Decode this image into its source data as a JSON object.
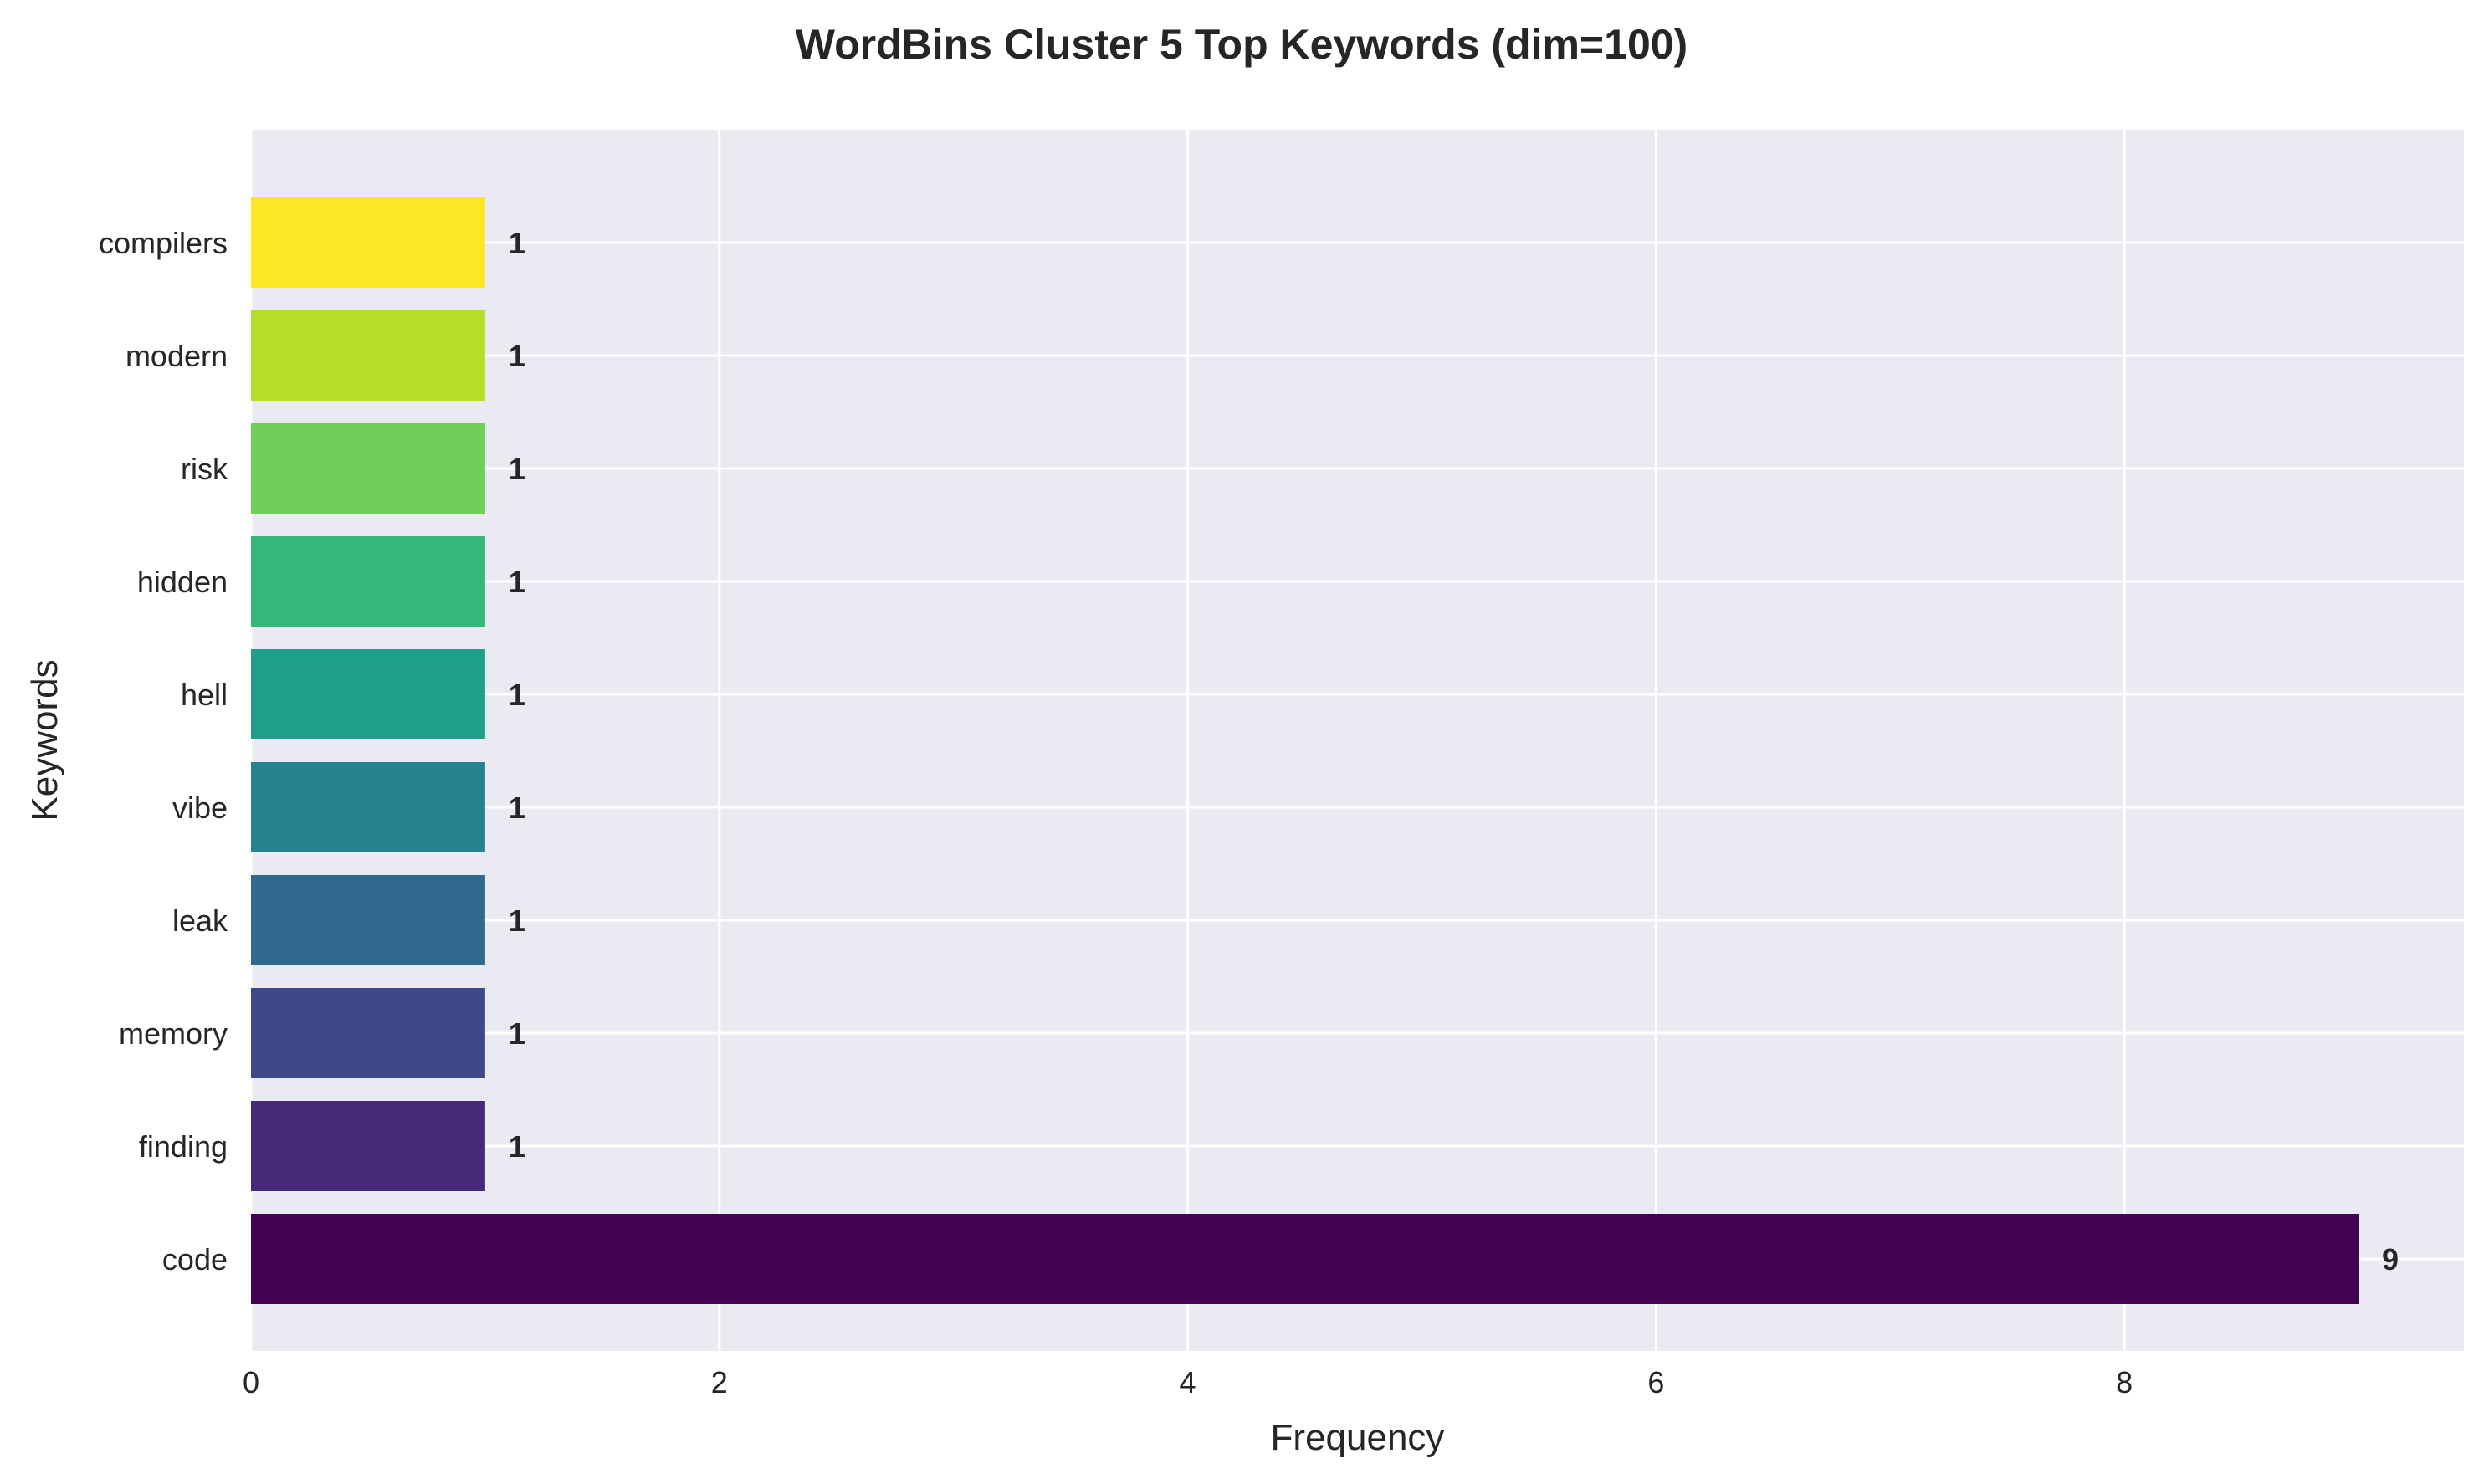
{
  "chart_data": {
    "type": "bar",
    "orientation": "horizontal",
    "title": "WordBins Cluster 5 Top Keywords (dim=100)",
    "xlabel": "Frequency",
    "ylabel": "Keywords",
    "categories": [
      "code",
      "finding",
      "memory",
      "leak",
      "vibe",
      "hell",
      "hidden",
      "risk",
      "modern",
      "compilers"
    ],
    "values": [
      9,
      1,
      1,
      1,
      1,
      1,
      1,
      1,
      1,
      1
    ],
    "data_labels": [
      "9",
      "1",
      "1",
      "1",
      "1",
      "1",
      "1",
      "1",
      "1",
      "1"
    ],
    "colors": [
      "#440154",
      "#482878",
      "#3e4989",
      "#31688e",
      "#26828e",
      "#1f9e89",
      "#35b779",
      "#6ece58",
      "#b5de2b",
      "#fde725"
    ],
    "xlim": [
      0,
      9.45
    ],
    "xticks": [
      0,
      2,
      4,
      6,
      8
    ],
    "xtick_labels": [
      "0",
      "2",
      "4",
      "6",
      "8"
    ],
    "grid": true,
    "background": "#eaeaf2",
    "grid_color": "#ffffff"
  }
}
